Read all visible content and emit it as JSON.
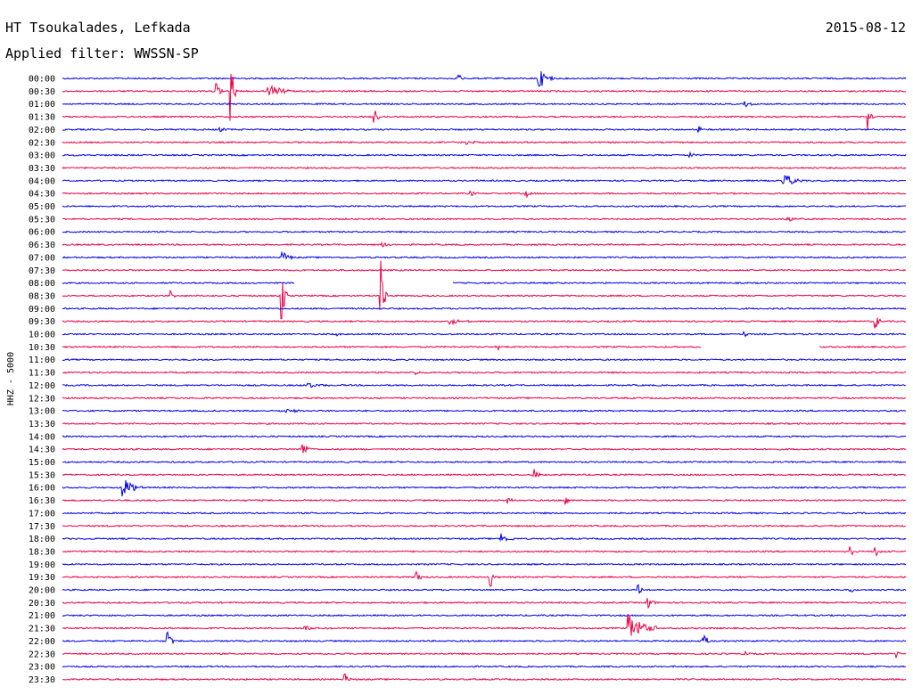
{
  "header": {
    "station": "HT Tsoukalades, Lefkada",
    "date": "2015-08-12",
    "filter": "Applied filter: WWSSN-SP"
  },
  "chart_data": {
    "type": "line",
    "chart_kind": "helicorder",
    "ylabel": "HHZ - 5000",
    "trace_colors": [
      "#0000ee",
      "#ee0044"
    ],
    "rows": [
      {
        "label": "00:00",
        "events": [
          {
            "x": 0.47,
            "amp": 5,
            "dur": 0.006
          },
          {
            "x": 0.565,
            "amp": 12,
            "dur": 0.015
          }
        ]
      },
      {
        "label": "00:30",
        "events": [
          {
            "x": 0.183,
            "amp": 9,
            "dur": 0.005
          },
          {
            "x": 0.2,
            "amp": 40,
            "dur": 0.004
          },
          {
            "x": 0.245,
            "amp": 7,
            "dur": 0.025
          }
        ]
      },
      {
        "label": "01:00",
        "events": [
          {
            "x": 0.81,
            "amp": 3,
            "dur": 0.01
          }
        ]
      },
      {
        "label": "01:30",
        "events": [
          {
            "x": 0.37,
            "amp": 10,
            "dur": 0.004
          },
          {
            "x": 0.955,
            "amp": 16,
            "dur": 0.004
          }
        ]
      },
      {
        "label": "02:00",
        "events": [
          {
            "x": 0.188,
            "amp": 3,
            "dur": 0.008
          },
          {
            "x": 0.755,
            "amp": 4,
            "dur": 0.003
          }
        ]
      },
      {
        "label": "02:30",
        "events": [
          {
            "x": 0.48,
            "amp": 3,
            "dur": 0.01
          }
        ]
      },
      {
        "label": "03:00",
        "events": [
          {
            "x": 0.745,
            "amp": 4,
            "dur": 0.005
          }
        ]
      },
      {
        "label": "03:30",
        "events": []
      },
      {
        "label": "04:00",
        "events": [
          {
            "x": 0.855,
            "amp": 9,
            "dur": 0.02
          }
        ]
      },
      {
        "label": "04:30",
        "events": [
          {
            "x": 0.55,
            "amp": 5,
            "dur": 0.004
          },
          {
            "x": 0.485,
            "amp": 3,
            "dur": 0.006
          }
        ]
      },
      {
        "label": "05:00",
        "events": []
      },
      {
        "label": "05:30",
        "events": [
          {
            "x": 0.86,
            "amp": 3,
            "dur": 0.02
          }
        ]
      },
      {
        "label": "06:00",
        "events": []
      },
      {
        "label": "06:30",
        "events": [
          {
            "x": 0.38,
            "amp": 3,
            "dur": 0.012
          }
        ]
      },
      {
        "label": "07:00",
        "events": [
          {
            "x": 0.262,
            "amp": 6,
            "dur": 0.01
          }
        ]
      },
      {
        "label": "07:30",
        "events": []
      },
      {
        "label": "08:00",
        "events": [],
        "gap": [
          0.275,
          0.462
        ]
      },
      {
        "label": "08:30",
        "events": [
          {
            "x": 0.128,
            "amp": 5,
            "dur": 0.004
          },
          {
            "x": 0.26,
            "amp": 30,
            "dur": 0.004
          },
          {
            "x": 0.378,
            "amp": 40,
            "dur": 0.004
          }
        ]
      },
      {
        "label": "09:00",
        "events": []
      },
      {
        "label": "09:30",
        "events": [
          {
            "x": 0.46,
            "amp": 4,
            "dur": 0.02
          },
          {
            "x": 0.965,
            "amp": 9,
            "dur": 0.005
          }
        ]
      },
      {
        "label": "10:00",
        "events": [
          {
            "x": 0.325,
            "amp": 3,
            "dur": 0.006
          },
          {
            "x": 0.808,
            "amp": 6,
            "dur": 0.002
          }
        ]
      },
      {
        "label": "10:30",
        "events": [
          {
            "x": 0.518,
            "amp": 3,
            "dur": 0.003
          }
        ],
        "gap": [
          0.757,
          0.897
        ]
      },
      {
        "label": "11:00",
        "events": []
      },
      {
        "label": "11:30",
        "events": [
          {
            "x": 0.42,
            "amp": 4,
            "dur": 0.003
          }
        ]
      },
      {
        "label": "12:00",
        "events": [
          {
            "x": 0.29,
            "amp": 3,
            "dur": 0.03
          }
        ]
      },
      {
        "label": "12:30",
        "events": []
      },
      {
        "label": "13:00",
        "events": [
          {
            "x": 0.26,
            "amp": 4,
            "dur": 0.02
          }
        ]
      },
      {
        "label": "13:30",
        "events": []
      },
      {
        "label": "14:00",
        "events": []
      },
      {
        "label": "14:30",
        "events": [
          {
            "x": 0.285,
            "amp": 7,
            "dur": 0.012
          }
        ]
      },
      {
        "label": "15:00",
        "events": []
      },
      {
        "label": "15:30",
        "events": [
          {
            "x": 0.56,
            "amp": 7,
            "dur": 0.006
          }
        ]
      },
      {
        "label": "16:00",
        "events": [
          {
            "x": 0.072,
            "amp": 12,
            "dur": 0.02
          }
        ]
      },
      {
        "label": "16:30",
        "events": [
          {
            "x": 0.528,
            "amp": 4,
            "dur": 0.005
          },
          {
            "x": 0.597,
            "amp": 7,
            "dur": 0.004
          }
        ]
      },
      {
        "label": "17:00",
        "events": []
      },
      {
        "label": "17:30",
        "events": []
      },
      {
        "label": "18:00",
        "events": [
          {
            "x": 0.52,
            "amp": 7,
            "dur": 0.014
          }
        ]
      },
      {
        "label": "18:30",
        "events": [
          {
            "x": 0.935,
            "amp": 6,
            "dur": 0.003
          },
          {
            "x": 0.965,
            "amp": 6,
            "dur": 0.003
          }
        ]
      },
      {
        "label": "19:00",
        "events": []
      },
      {
        "label": "19:30",
        "events": [
          {
            "x": 0.42,
            "amp": 12,
            "dur": 0.004
          },
          {
            "x": 0.508,
            "amp": 12,
            "dur": 0.004
          }
        ]
      },
      {
        "label": "20:00",
        "events": [
          {
            "x": 0.683,
            "amp": 7,
            "dur": 0.004
          },
          {
            "x": 0.935,
            "amp": 3,
            "dur": 0.004
          }
        ]
      },
      {
        "label": "20:30",
        "events": [
          {
            "x": 0.695,
            "amp": 9,
            "dur": 0.005
          }
        ]
      },
      {
        "label": "21:00",
        "events": []
      },
      {
        "label": "21:30",
        "events": [
          {
            "x": 0.288,
            "amp": 8,
            "dur": 0.005
          },
          {
            "x": 0.672,
            "amp": 16,
            "dur": 0.03
          }
        ]
      },
      {
        "label": "22:00",
        "events": [
          {
            "x": 0.125,
            "amp": 13,
            "dur": 0.005
          },
          {
            "x": 0.76,
            "amp": 8,
            "dur": 0.007
          }
        ]
      },
      {
        "label": "22:30",
        "events": [
          {
            "x": 0.81,
            "amp": 4,
            "dur": 0.003
          },
          {
            "x": 0.99,
            "amp": 5,
            "dur": 0.003
          }
        ]
      },
      {
        "label": "23:00",
        "events": []
      },
      {
        "label": "23:30",
        "events": [
          {
            "x": 0.335,
            "amp": 9,
            "dur": 0.005
          }
        ]
      }
    ]
  }
}
